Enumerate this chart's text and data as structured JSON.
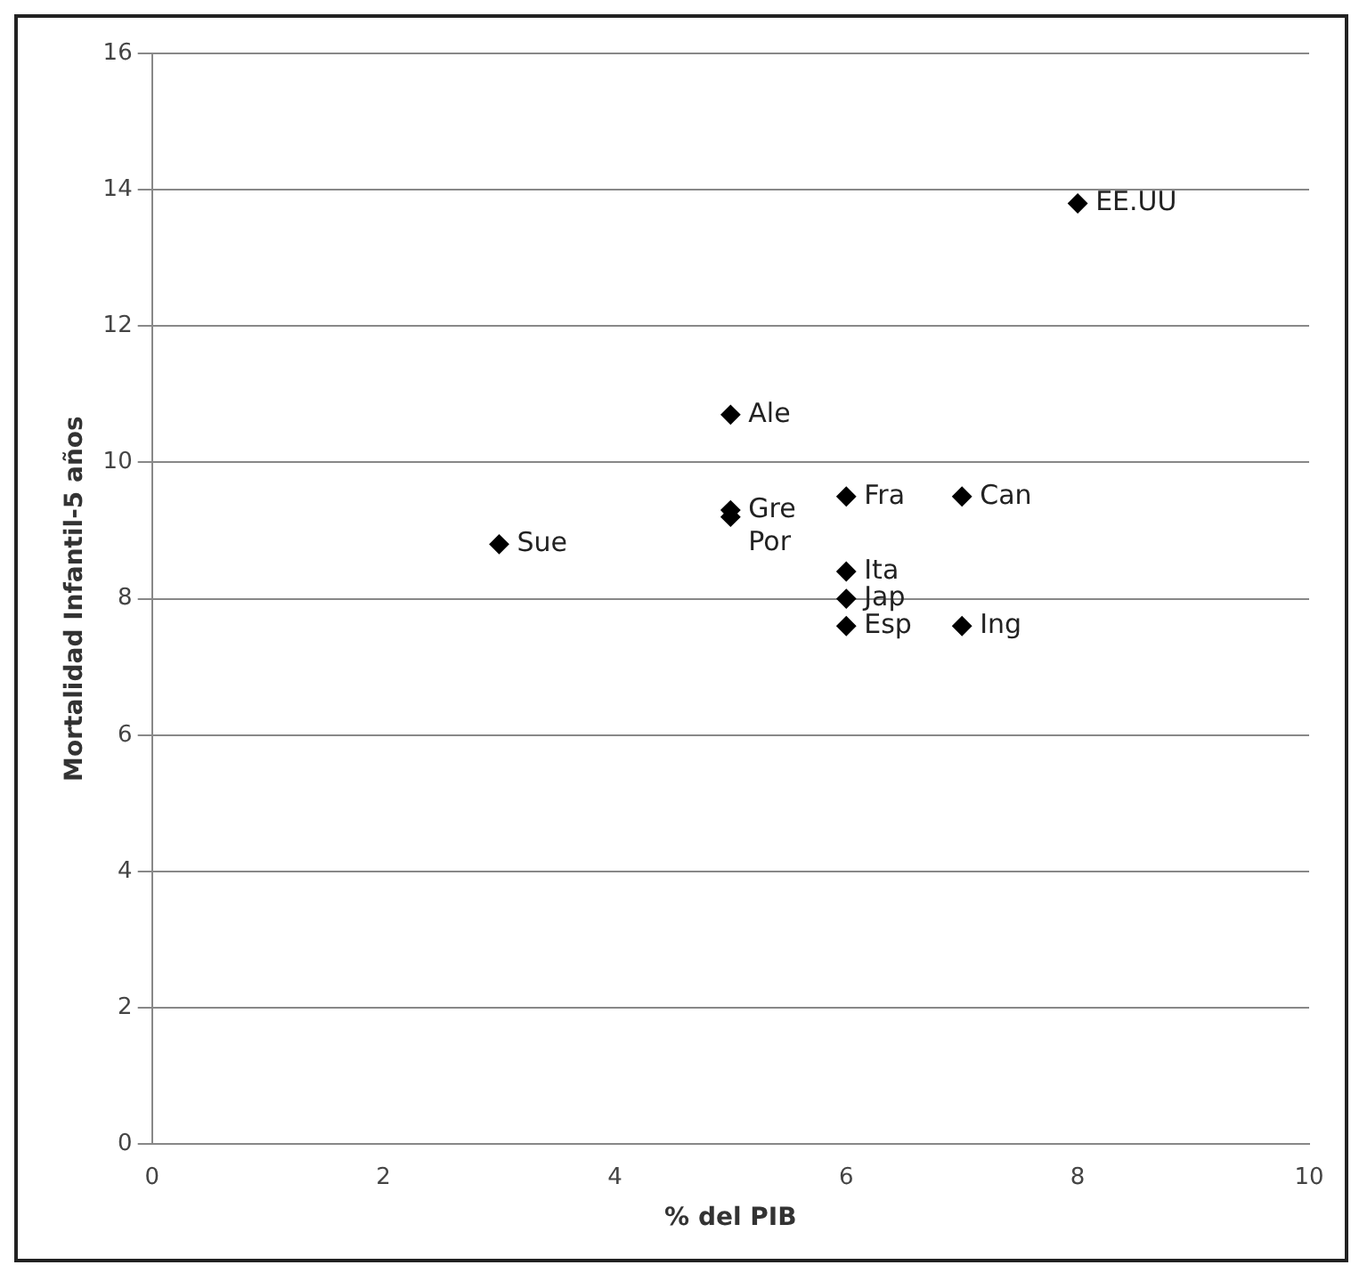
{
  "chart_data": {
    "type": "scatter",
    "xlabel": "% del PIB",
    "ylabel": "Mortalidad Infantil-5 años",
    "xlim": [
      0,
      10
    ],
    "xticks": [
      0,
      2,
      4,
      6,
      8,
      10
    ],
    "ylim": [
      0,
      16
    ],
    "yticks": [
      0,
      2,
      4,
      6,
      8,
      10,
      12,
      14,
      16
    ],
    "grid": "y",
    "legend": false,
    "marker": "diamond",
    "series": [
      {
        "name": "EE.UU",
        "color": "#000000",
        "x": [
          8
        ],
        "values": [
          13.8
        ]
      },
      {
        "name": "Ale",
        "color": "#000000",
        "x": [
          5
        ],
        "values": [
          10.7
        ]
      },
      {
        "name": "Fra",
        "color": "#000000",
        "x": [
          6
        ],
        "values": [
          9.5
        ]
      },
      {
        "name": "Can",
        "color": "#000000",
        "x": [
          7
        ],
        "values": [
          9.5
        ]
      },
      {
        "name": "Gre",
        "color": "#000000",
        "x": [
          5
        ],
        "values": [
          9.3
        ]
      },
      {
        "name": "Por",
        "color": "#000000",
        "x": [
          5
        ],
        "values": [
          9.2
        ]
      },
      {
        "name": "Sue",
        "color": "#000000",
        "x": [
          3
        ],
        "values": [
          8.8
        ]
      },
      {
        "name": "Ita",
        "color": "#000000",
        "x": [
          6
        ],
        "values": [
          8.4
        ]
      },
      {
        "name": "Jap",
        "color": "#000000",
        "x": [
          6
        ],
        "values": [
          8.0
        ]
      },
      {
        "name": "Esp",
        "color": "#000000",
        "x": [
          6
        ],
        "values": [
          7.6
        ]
      },
      {
        "name": "Ing",
        "color": "#000000",
        "x": [
          7
        ],
        "values": [
          7.6
        ]
      }
    ]
  }
}
